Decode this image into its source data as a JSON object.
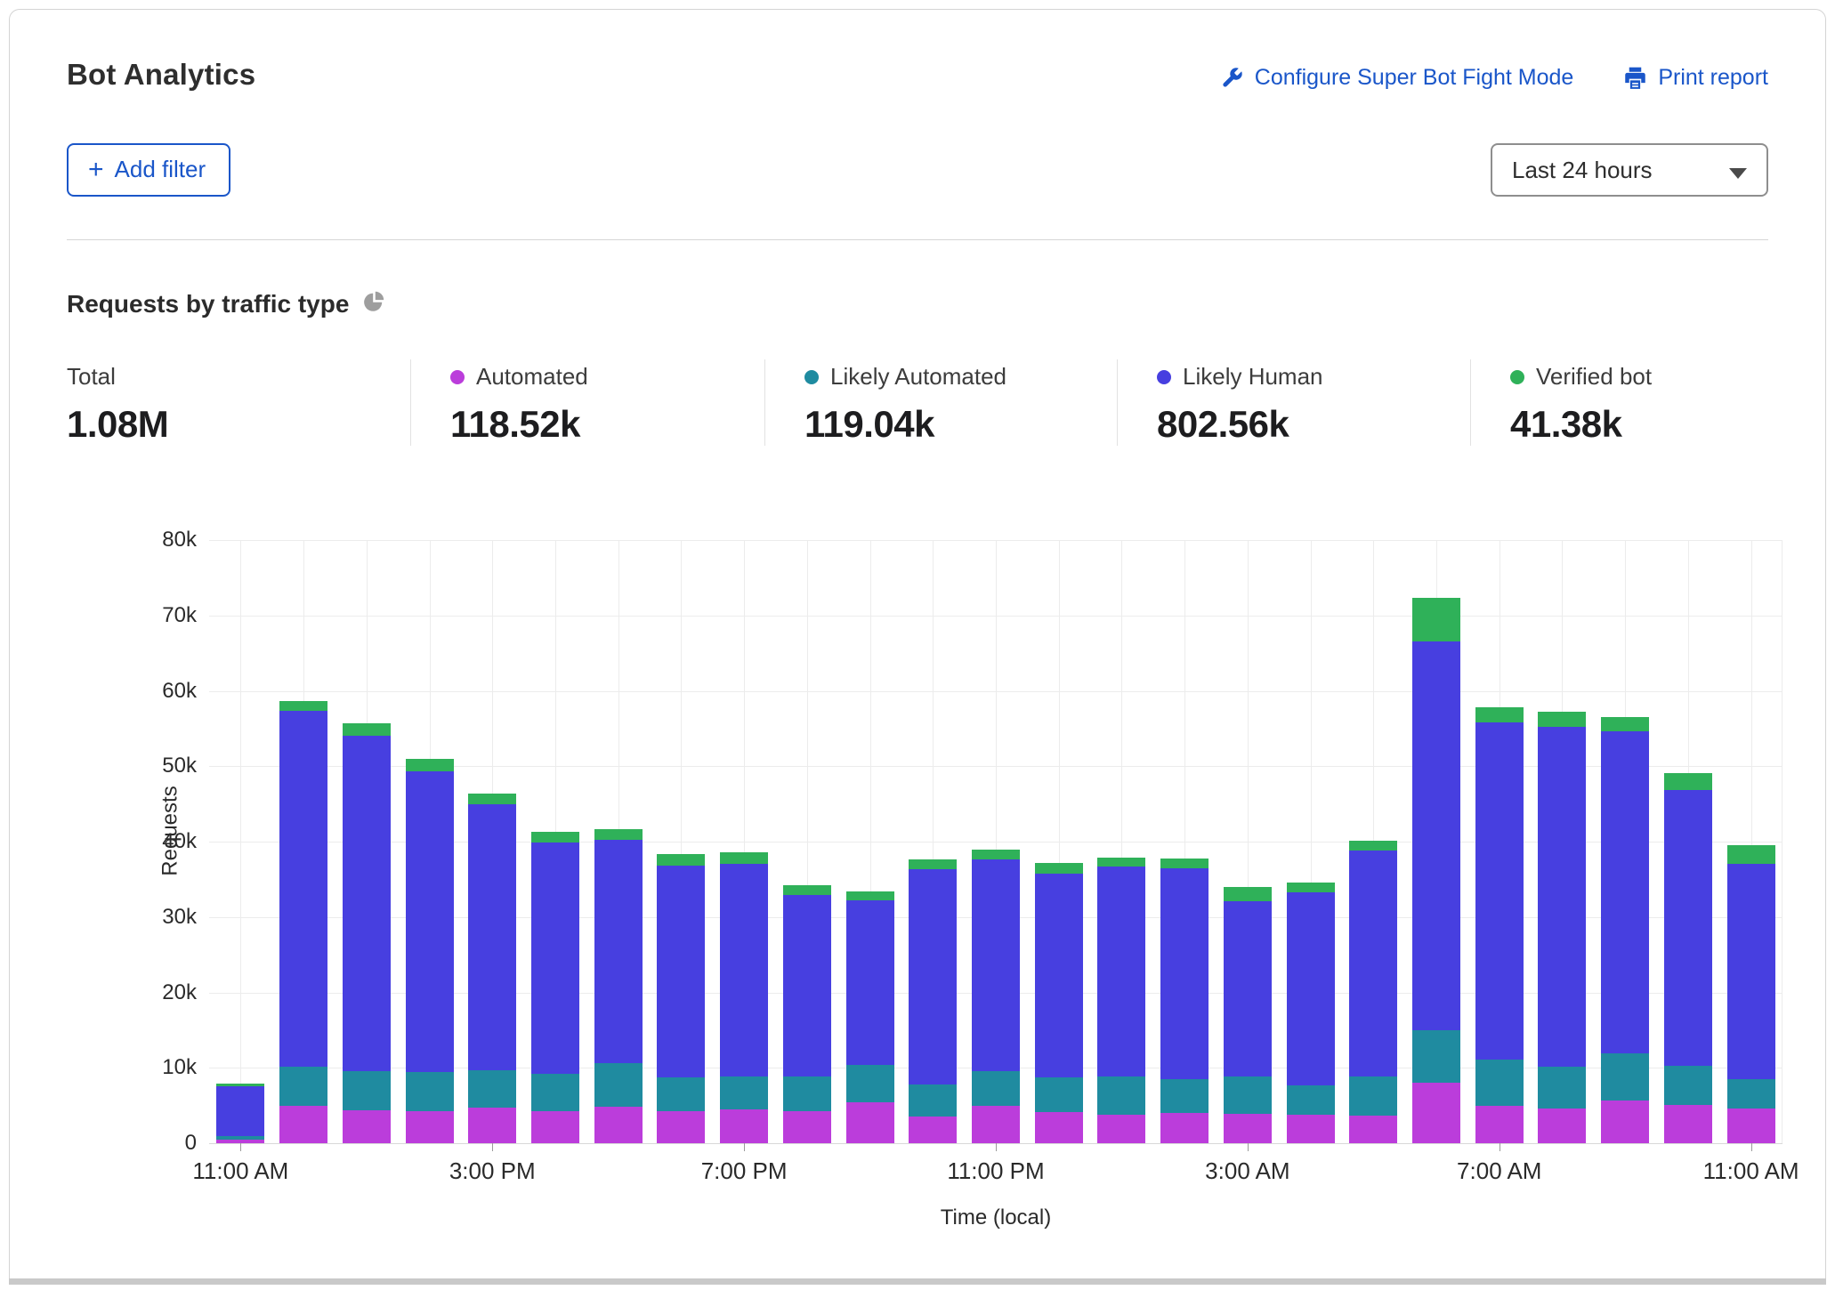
{
  "header": {
    "title": "Bot Analytics",
    "configure_link": "Configure Super Bot Fight Mode",
    "print_link": "Print report",
    "add_filter_plus": "+",
    "add_filter_label": "Add filter",
    "time_range_value": "Last 24 hours"
  },
  "section": {
    "title": "Requests by traffic type"
  },
  "stats": [
    {
      "label": "Total",
      "value": "1.08M",
      "color": null
    },
    {
      "label": "Automated",
      "value": "118.52k",
      "color": "#bb3ddb"
    },
    {
      "label": "Likely Automated",
      "value": "119.04k",
      "color": "#1f8ba0"
    },
    {
      "label": "Likely Human",
      "value": "802.56k",
      "color": "#473fe0"
    },
    {
      "label": "Verified bot",
      "value": "41.38k",
      "color": "#2fb159"
    }
  ],
  "colors": {
    "link": "#1a56c9",
    "pie_icon": "#9e9e9e"
  },
  "chart_data": {
    "type": "bar",
    "stacked": true,
    "title": "Requests by traffic type",
    "xlabel": "Time (local)",
    "ylabel": "Requests",
    "ylim": [
      0,
      80000
    ],
    "y_ticks": [
      "0",
      "10k",
      "20k",
      "30k",
      "40k",
      "50k",
      "60k",
      "70k",
      "80k"
    ],
    "x_tick_labels": [
      "11:00 AM",
      "3:00 PM",
      "7:00 PM",
      "11:00 PM",
      "3:00 AM",
      "7:00 AM",
      "11:00 AM"
    ],
    "x_tick_bar_indices": [
      0,
      4,
      8,
      12,
      16,
      20,
      24
    ],
    "bar_count": 25,
    "values_unit": "thousands of requests per hour",
    "series": [
      {
        "name": "Automated",
        "color": "#bb3ddb",
        "values": [
          0.45,
          4.9,
          4.4,
          4.3,
          4.7,
          4.3,
          4.8,
          4.2,
          4.5,
          4.2,
          5.4,
          3.6,
          4.9,
          4.1,
          3.8,
          4.0,
          3.9,
          3.8,
          3.7,
          8.0,
          5.0,
          4.6,
          5.7,
          5.1,
          4.6
        ]
      },
      {
        "name": "Likely Automated",
        "color": "#1f8ba0",
        "values": [
          0.45,
          5.2,
          5.2,
          5.1,
          5.0,
          4.9,
          5.8,
          4.5,
          4.4,
          4.7,
          5.0,
          4.2,
          4.7,
          4.6,
          5.1,
          4.5,
          4.9,
          3.9,
          5.2,
          7.0,
          6.1,
          5.6,
          6.2,
          5.2,
          3.9
        ]
      },
      {
        "name": "Likely Human",
        "color": "#473fe0",
        "values": [
          6.6,
          47.2,
          44.5,
          39.9,
          35.3,
          30.7,
          29.6,
          28.1,
          28.2,
          24.0,
          21.8,
          28.5,
          28.1,
          27.1,
          27.8,
          28.0,
          23.3,
          25.6,
          29.9,
          51.5,
          44.7,
          45.0,
          42.7,
          36.6,
          28.5
        ]
      },
      {
        "name": "Verified bot",
        "color": "#2fb159",
        "values": [
          0.4,
          1.3,
          1.6,
          1.7,
          1.4,
          1.4,
          1.5,
          1.6,
          1.5,
          1.3,
          1.2,
          1.3,
          1.2,
          1.4,
          1.2,
          1.3,
          1.9,
          1.3,
          1.3,
          5.8,
          2.0,
          2.0,
          1.9,
          2.2,
          2.5
        ]
      }
    ]
  }
}
